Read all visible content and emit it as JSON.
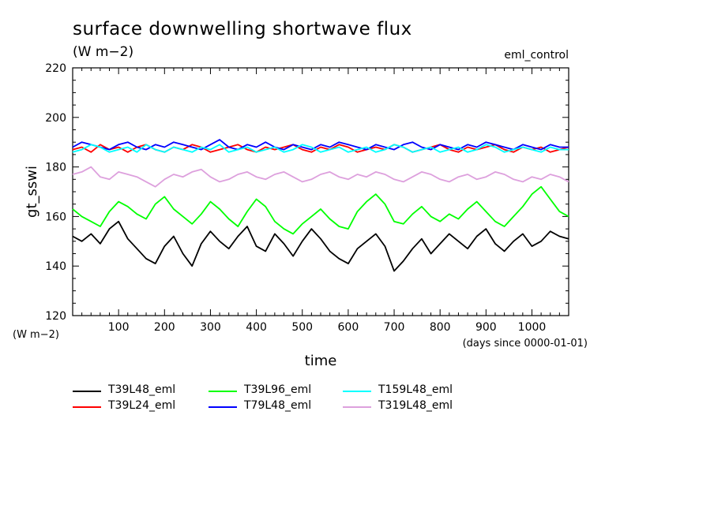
{
  "header": {
    "title": "surface downwelling shortwave flux",
    "units": "(W m−2)",
    "experiment": "eml_control"
  },
  "chart_data": {
    "type": "line",
    "title": "surface downwelling shortwave flux",
    "subtitle": "(W m−2)",
    "xlabel": "time",
    "x_units_label": "(days since 0000-01-01)",
    "ylabel": "gt_sswi",
    "y_units_label": "(W m−2)",
    "xlim": [
      0,
      1080
    ],
    "ylim": [
      120,
      220
    ],
    "x_ticks": [
      100,
      200,
      300,
      400,
      500,
      600,
      700,
      800,
      900,
      1000
    ],
    "y_ticks": [
      120,
      140,
      160,
      180,
      200,
      220
    ],
    "grid": false,
    "legend_position": "bottom",
    "series": [
      {
        "name": "T39L48_eml",
        "color": "#000000",
        "x_start": 0,
        "x_step": 20,
        "values": [
          152,
          150,
          153,
          149,
          155,
          158,
          151,
          147,
          143,
          141,
          148,
          152,
          145,
          140,
          149,
          154,
          150,
          147,
          152,
          156,
          148,
          146,
          153,
          149,
          144,
          150,
          155,
          151,
          146,
          143,
          141,
          147,
          150,
          153,
          148,
          138,
          142,
          147,
          151,
          145,
          149,
          153,
          150,
          147,
          152,
          155,
          149,
          146,
          150,
          153,
          148,
          150,
          154,
          152,
          151
        ]
      },
      {
        "name": "T39L24_eml",
        "color": "#ff0000",
        "x_start": 0,
        "x_step": 20,
        "values": [
          187,
          188,
          186,
          189,
          187,
          188,
          186,
          188,
          189,
          187,
          186,
          188,
          187,
          189,
          188,
          186,
          187,
          188,
          189,
          187,
          186,
          188,
          187,
          188,
          189,
          187,
          186,
          188,
          187,
          189,
          188,
          186,
          187,
          188,
          187,
          189,
          188,
          186,
          187,
          188,
          189,
          187,
          186,
          188,
          187,
          188,
          189,
          187,
          186,
          188,
          187,
          188,
          186,
          187,
          188
        ]
      },
      {
        "name": "T39L96_eml",
        "color": "#00ff00",
        "x_start": 0,
        "x_step": 20,
        "values": [
          163,
          160,
          158,
          156,
          162,
          166,
          164,
          161,
          159,
          165,
          168,
          163,
          160,
          157,
          161,
          166,
          163,
          159,
          156,
          162,
          167,
          164,
          158,
          155,
          153,
          157,
          160,
          163,
          159,
          156,
          155,
          162,
          166,
          169,
          165,
          158,
          157,
          161,
          164,
          160,
          158,
          161,
          159,
          163,
          166,
          162,
          158,
          156,
          160,
          164,
          169,
          172,
          167,
          162,
          160
        ]
      },
      {
        "name": "T79L48_eml",
        "color": "#0000ff",
        "x_start": 0,
        "x_step": 20,
        "values": [
          188,
          190,
          189,
          188,
          187,
          189,
          190,
          188,
          187,
          189,
          188,
          190,
          189,
          188,
          187,
          189,
          191,
          188,
          187,
          189,
          188,
          190,
          188,
          187,
          189,
          188,
          187,
          189,
          188,
          190,
          189,
          188,
          187,
          189,
          188,
          187,
          189,
          190,
          188,
          187,
          189,
          188,
          187,
          189,
          188,
          190,
          189,
          188,
          187,
          189,
          188,
          187,
          189,
          188,
          188
        ]
      },
      {
        "name": "T159L48_eml",
        "color": "#00ffff",
        "x_start": 0,
        "x_step": 20,
        "values": [
          186,
          187,
          189,
          188,
          186,
          187,
          188,
          186,
          189,
          187,
          186,
          188,
          187,
          186,
          188,
          187,
          189,
          186,
          187,
          188,
          186,
          187,
          188,
          186,
          187,
          189,
          188,
          186,
          187,
          188,
          186,
          187,
          188,
          186,
          187,
          189,
          188,
          186,
          187,
          188,
          186,
          187,
          188,
          186,
          187,
          189,
          188,
          186,
          187,
          188,
          187,
          186,
          188,
          187,
          187
        ]
      },
      {
        "name": "T319L48_eml",
        "color": "#dda0dd",
        "x_start": 0,
        "x_step": 20,
        "values": [
          177,
          178,
          180,
          176,
          175,
          178,
          177,
          176,
          174,
          172,
          175,
          177,
          176,
          178,
          179,
          176,
          174,
          175,
          177,
          178,
          176,
          175,
          177,
          178,
          176,
          174,
          175,
          177,
          178,
          176,
          175,
          177,
          176,
          178,
          177,
          175,
          174,
          176,
          178,
          177,
          175,
          174,
          176,
          177,
          175,
          176,
          178,
          177,
          175,
          174,
          176,
          175,
          177,
          176,
          174
        ]
      }
    ]
  }
}
